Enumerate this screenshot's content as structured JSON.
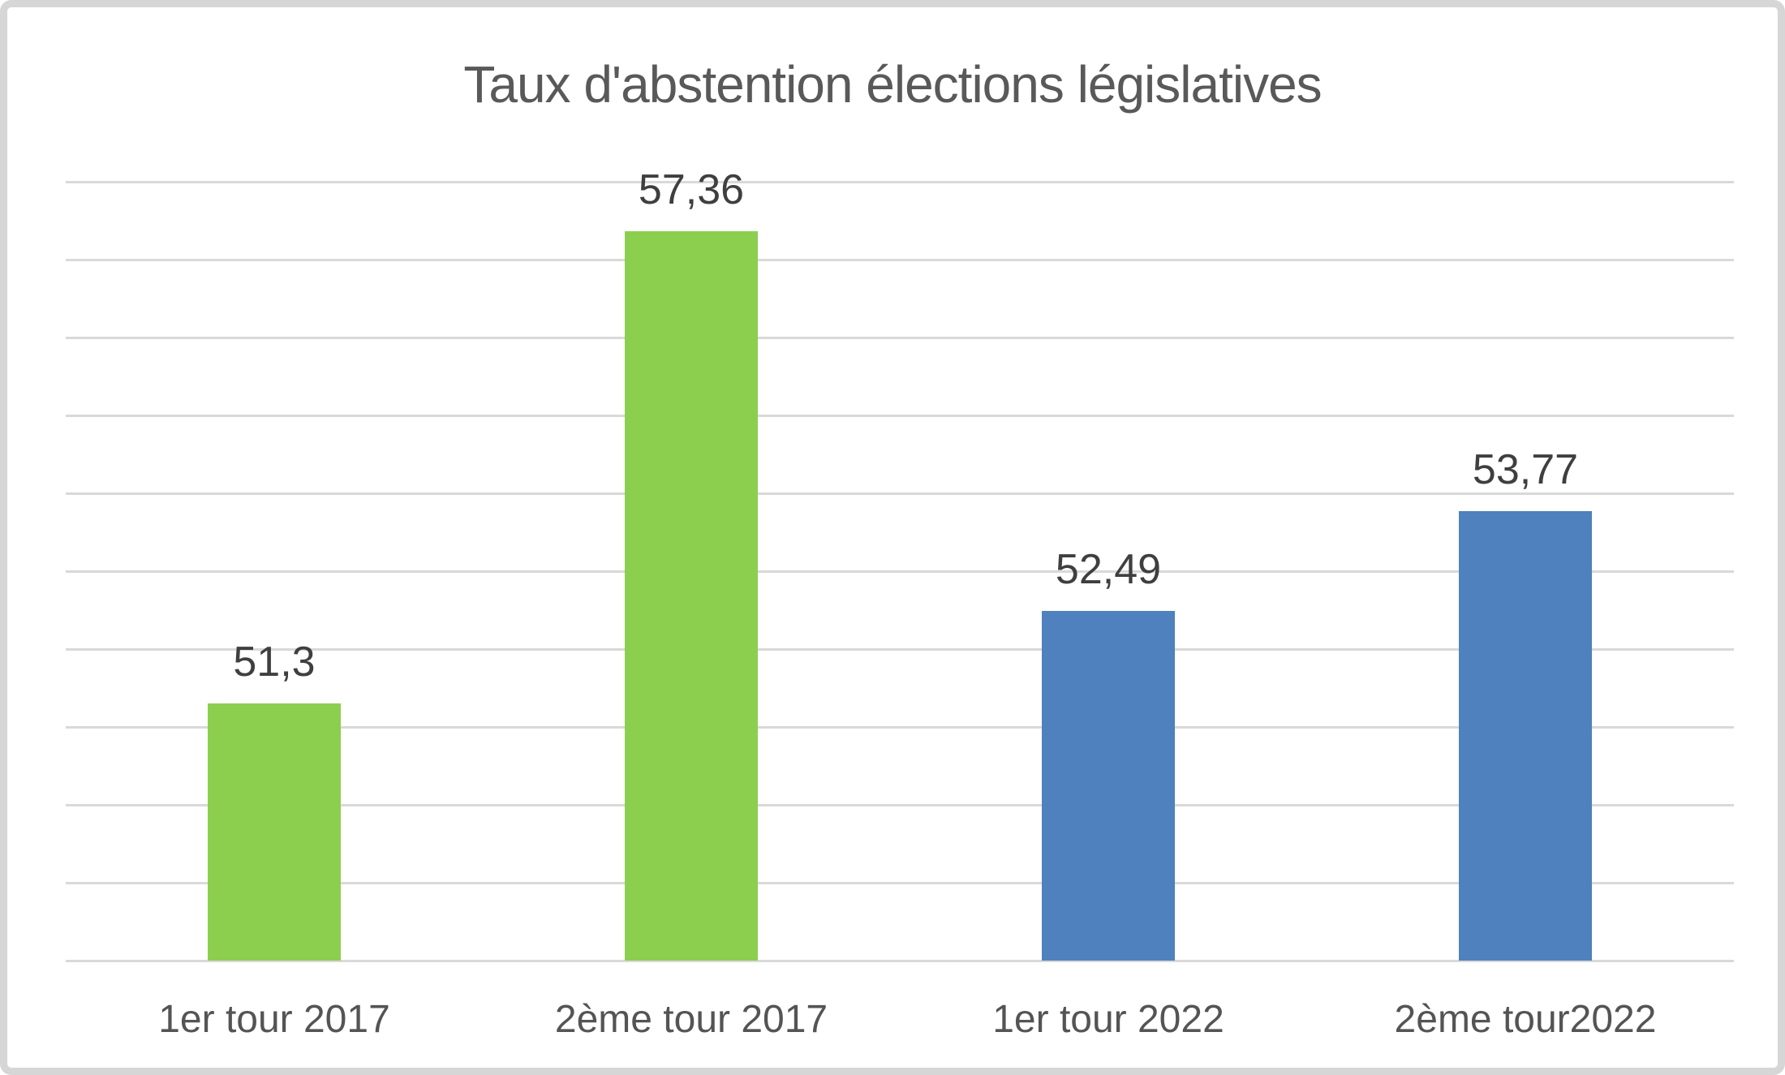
{
  "chart_data": {
    "type": "bar",
    "title": "Taux d'abstention élections législatives",
    "categories": [
      "1er tour 2017",
      "2ème tour 2017",
      "1er tour 2022",
      "2ème tour2022"
    ],
    "values": [
      51.3,
      57.36,
      52.49,
      53.77
    ],
    "value_labels": [
      "51,3",
      "57,36",
      "52,49",
      "53,77"
    ],
    "bar_colors": [
      "#8ccf4f",
      "#8ccf4f",
      "#4e81bd",
      "#4e81bd"
    ],
    "xlabel": "",
    "ylabel": "",
    "ylim": [
      48,
      58
    ],
    "gridline_step": 1,
    "grid": true,
    "legend": "none",
    "y_axis_tick_labels_visible": false,
    "data_labels_position": "outside-end",
    "colors": {
      "gridline": "#d9d9d9",
      "title_text": "#595959",
      "value_label_text": "#3f3f3f",
      "category_label_text": "#545454",
      "frame_border": "#d6d6d6",
      "background": "#ffffff"
    }
  }
}
